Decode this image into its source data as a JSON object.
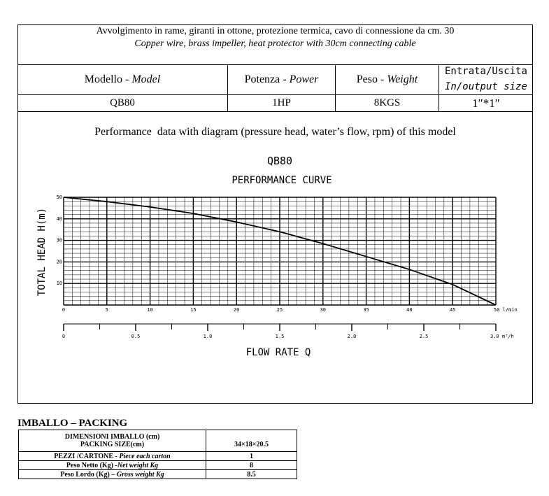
{
  "header": {
    "line1": "Avvolgimento in rame, giranti in ottone, protezione termica, cavo di connessione da cm. 30",
    "line2": "Copper wire, brass impeller, heat protector with 30cm connecting cable"
  },
  "spec_table": {
    "model_label_it": "Modello - ",
    "model_label_en": "Model",
    "power_label_it": "Potenza - ",
    "power_label_en": "Power",
    "weight_label_it": "Peso - ",
    "weight_label_en": "Weight",
    "io_label_it": "Entrata/Uscita",
    "io_label_en": "In/output size",
    "model_value": "QB80",
    "power_value": "1HP",
    "weight_value": "8KGS",
    "io_value": "1″*1″"
  },
  "performance": {
    "caption": "Performance  data with diagram (pressure head, water’s flow, rpm) of this model"
  },
  "chart_data": {
    "type": "line",
    "title": "QB80",
    "subtitle": "PERFORMANCE CURVE",
    "ylabel": "TOTAL HEAD  H(m)",
    "xlabel": "FLOW RATE Q",
    "x_unit": "l/min",
    "x2_unit": "m³/h",
    "xlim": [
      0,
      50
    ],
    "ylim": [
      0,
      50
    ],
    "x_ticks": [
      0,
      5,
      10,
      15,
      20,
      25,
      30,
      35,
      40,
      45,
      50
    ],
    "y_ticks": [
      10,
      20,
      30,
      40,
      50
    ],
    "x2_ticks": [
      "0",
      "0.5",
      "1.0",
      "1.5",
      "2.0",
      "2.5",
      "3.0"
    ],
    "x2_lim": [
      0,
      3.0
    ],
    "grid": true,
    "series": [
      {
        "x": [
          0,
          5,
          10,
          15,
          20,
          25,
          30,
          35,
          40,
          45,
          50
        ],
        "y": [
          50,
          48,
          45.5,
          42.5,
          38.5,
          34,
          28.5,
          22.5,
          16.5,
          9.5,
          0
        ]
      }
    ]
  },
  "packing": {
    "title": "IMBALLO – PACKING",
    "size_label_it": "DIMENSIONI IMBALLO (cm)",
    "size_label_en": "PACKING SIZE(cm)",
    "size_value": "34×18×20.5",
    "pieces_label_it": "PEZZI /CARTONE - ",
    "pieces_label_en": "Piece each carton",
    "pieces_value": "1",
    "net_label_it": "Peso Netto (Kg) -",
    "net_label_en": "Net  weight Kg",
    "net_value": "8",
    "gross_label_it": "Peso Lordo (Kg) – ",
    "gross_label_en": "Gross weight Kg",
    "gross_value": "8.5"
  }
}
